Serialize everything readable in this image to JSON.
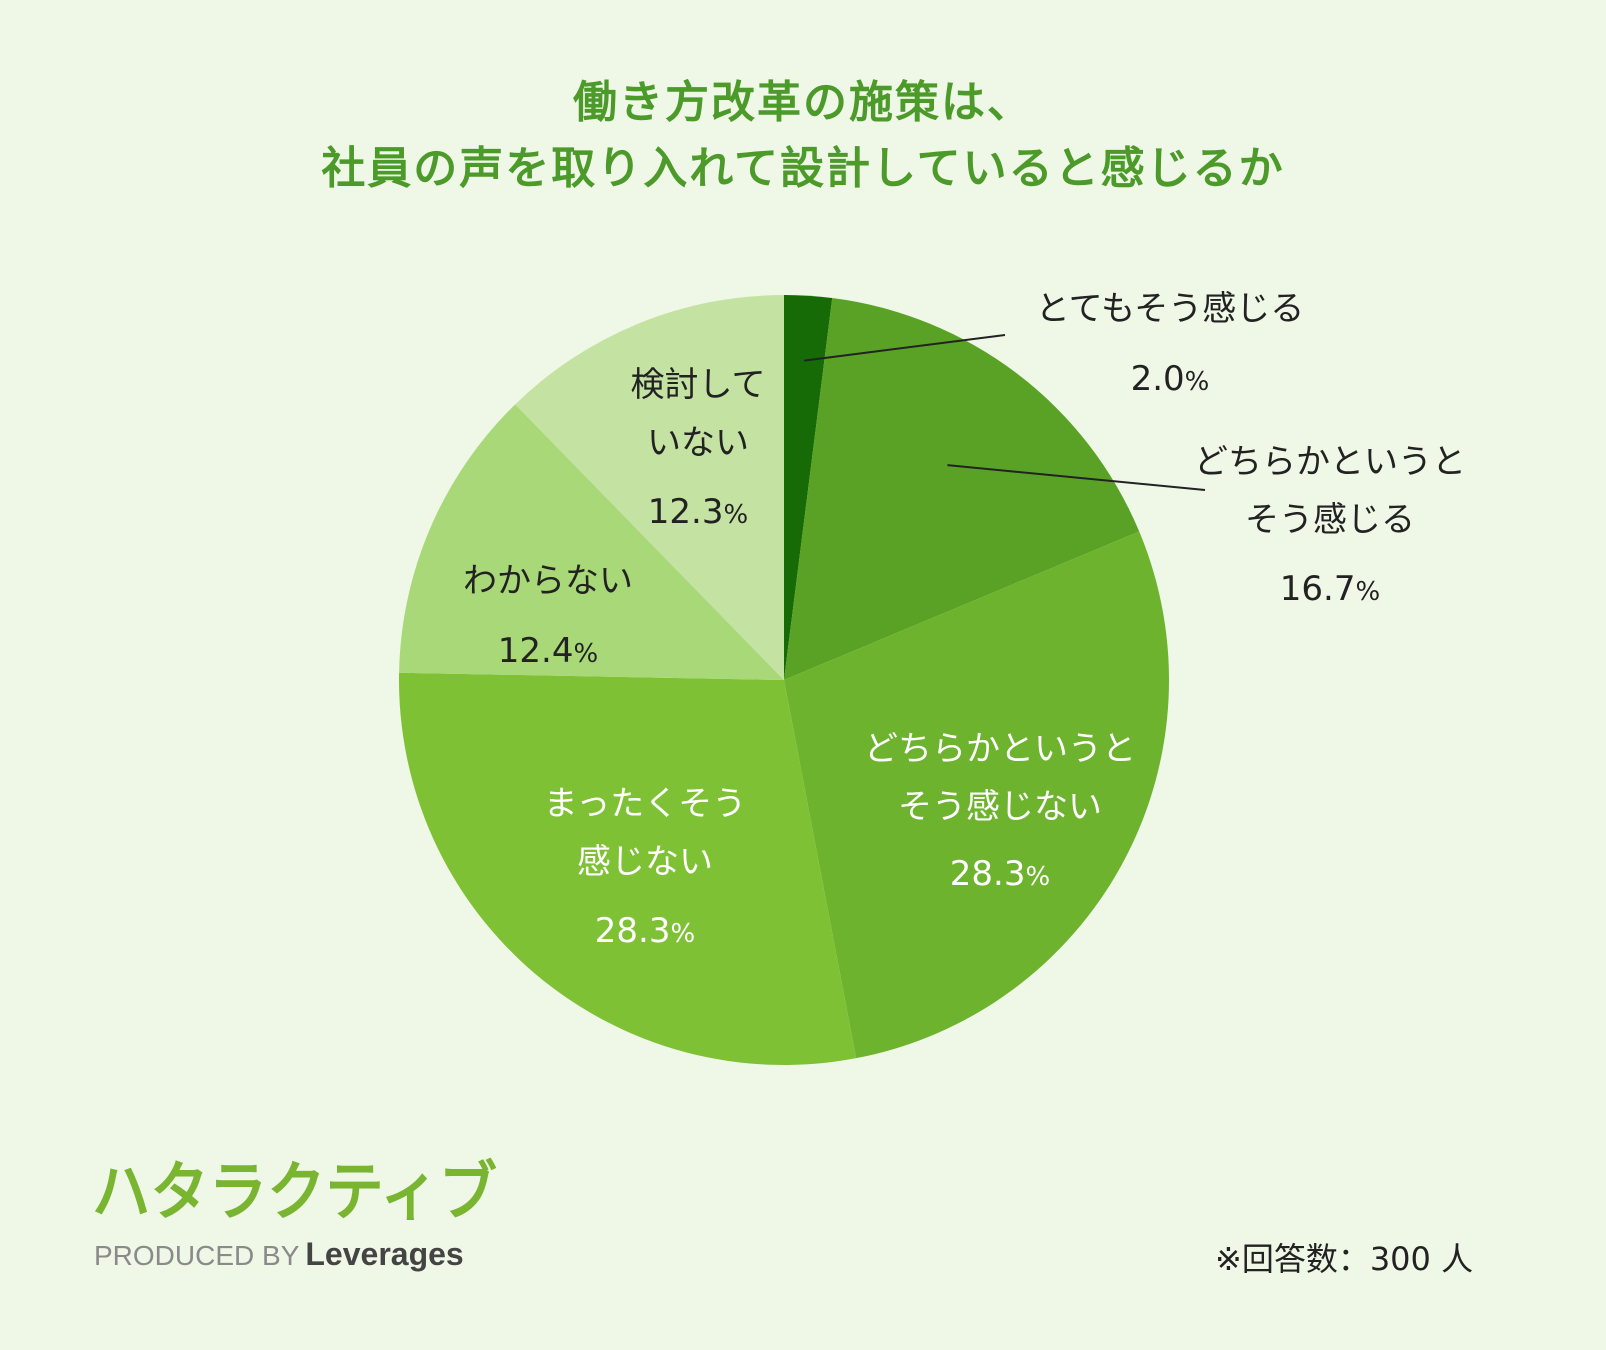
{
  "title_line1": "働き方改革の施策は、",
  "title_line2": "社員の声を取り入れて設計していると感じるか",
  "chart_data": {
    "type": "pie",
    "title": "働き方改革の施策は、社員の声を取り入れて設計していると感じるか",
    "slices": [
      {
        "label": "とてもそう感じる",
        "value": 2.0,
        "value_text": "2.0",
        "color": "#166b06",
        "label_color": "#222222"
      },
      {
        "label": "どちらかというとそう感じる",
        "value": 16.7,
        "value_text": "16.7",
        "color": "#5aa225",
        "label_color": "#222222"
      },
      {
        "label": "どちらかというとそう感じない",
        "value": 28.3,
        "value_text": "28.3",
        "color": "#6db32e",
        "label_color": "#ffffff"
      },
      {
        "label": "まったくそう感じない",
        "value": 28.3,
        "value_text": "28.3",
        "color": "#7fc135",
        "label_color": "#ffffff"
      },
      {
        "label": "わからない",
        "value": 12.4,
        "value_text": "12.4",
        "color": "#a8d878",
        "label_color": "#222222"
      },
      {
        "label": "検討していない",
        "value": 12.3,
        "value_text": "12.3",
        "color": "#c4e3a2",
        "label_color": "#222222"
      }
    ],
    "unit": "%"
  },
  "labels": {
    "s0": [
      "とてもそう感じる"
    ],
    "s1": [
      "どちらかというと",
      "そう感じる"
    ],
    "s2": [
      "どちらかというと",
      "そう感じない"
    ],
    "s3": [
      "まったくそう",
      "感じない"
    ],
    "s4": [
      "わからない"
    ],
    "s5": [
      "検討して",
      "いない"
    ]
  },
  "logo_text": "ハタラクティブ",
  "produced_by": "PRODUCED BY",
  "brand": "Leverages",
  "respondents": "※回答数：300 人"
}
